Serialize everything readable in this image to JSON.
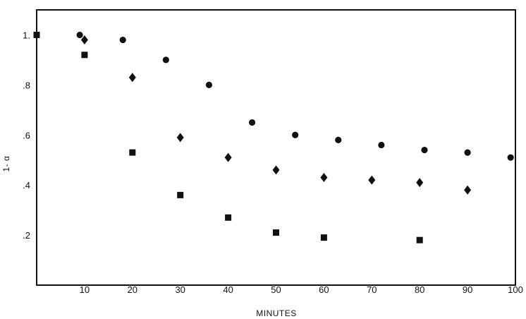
{
  "chart_data": {
    "type": "scatter",
    "xlabel": "MINUTES",
    "ylabel": "1- α",
    "xlim": [
      0,
      100
    ],
    "ylim": [
      0,
      1.1
    ],
    "grid": false,
    "legend": "none",
    "x_ticks": [
      {
        "value": 10,
        "label": "10"
      },
      {
        "value": 20,
        "label": "20"
      },
      {
        "value": 30,
        "label": "30"
      },
      {
        "value": 40,
        "label": "40"
      },
      {
        "value": 50,
        "label": "50"
      },
      {
        "value": 60,
        "label": "60"
      },
      {
        "value": 70,
        "label": "70"
      },
      {
        "value": 80,
        "label": "80"
      },
      {
        "value": 90,
        "label": "90"
      },
      {
        "value": 100,
        "label": "100"
      }
    ],
    "y_ticks": [
      {
        "value": 0.2,
        "label": ".2"
      },
      {
        "value": 0.4,
        "label": ".4"
      },
      {
        "value": 0.6,
        "label": ".6"
      },
      {
        "value": 0.8,
        "label": ".8"
      },
      {
        "value": 1.0,
        "label": "1."
      }
    ],
    "series": [
      {
        "marker": "circle",
        "color": "#111111",
        "points": [
          [
            9,
            1.0
          ],
          [
            18,
            0.98
          ],
          [
            27,
            0.9
          ],
          [
            36,
            0.8
          ],
          [
            45,
            0.65
          ],
          [
            54,
            0.6
          ],
          [
            63,
            0.58
          ],
          [
            72,
            0.56
          ],
          [
            81,
            0.54
          ],
          [
            90,
            0.53
          ],
          [
            99,
            0.51
          ]
        ]
      },
      {
        "marker": "diamond",
        "color": "#111111",
        "points": [
          [
            10,
            0.98
          ],
          [
            20,
            0.83
          ],
          [
            30,
            0.59
          ],
          [
            40,
            0.51
          ],
          [
            50,
            0.46
          ],
          [
            60,
            0.43
          ],
          [
            70,
            0.42
          ],
          [
            80,
            0.41
          ],
          [
            90,
            0.38
          ]
        ]
      },
      {
        "marker": "square",
        "color": "#111111",
        "points": [
          [
            0,
            1.0
          ],
          [
            10,
            0.92
          ],
          [
            20,
            0.53
          ],
          [
            30,
            0.36
          ],
          [
            40,
            0.27
          ],
          [
            50,
            0.21
          ],
          [
            60,
            0.19
          ],
          [
            80,
            0.18
          ]
        ]
      }
    ]
  }
}
